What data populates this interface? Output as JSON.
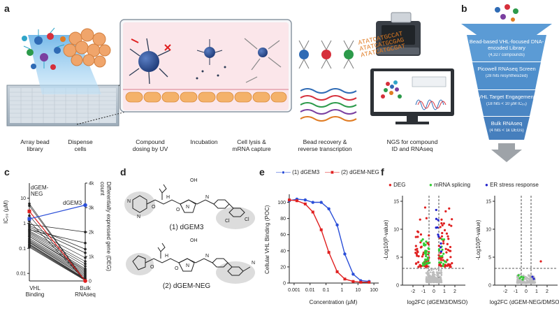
{
  "panel_letters": {
    "a": "a",
    "b": "b",
    "c": "c",
    "d": "d",
    "e": "e",
    "f": "f"
  },
  "panel_a": {
    "steps": [
      {
        "label": "Array bead\nlibrary"
      },
      {
        "label": "Dispense\ncells"
      },
      {
        "label": "Compound\ndosing by UV"
      },
      {
        "label": "Incubation"
      },
      {
        "label": "Cell lysis &\nmRNA capture"
      },
      {
        "label": "Bead recovery &\nreverse transcription"
      },
      {
        "label": "NGS for compound\nID and RNAseq"
      }
    ],
    "sequences": [
      "ATATCATGCCAT",
      "ATATCATGCGAG",
      "ATATCATGCGAT"
    ]
  },
  "panel_b": {
    "tiers": [
      {
        "title": "Bead-based VHL-focused DNA-encoded Library",
        "sub": "(4,327 compounds)",
        "color": "#5b9bd5"
      },
      {
        "title": "Picowell RNAseq Screen",
        "sub": "(28 hits resynthesized)",
        "color": "#4f8fcc"
      },
      {
        "title": "VHL Target Engagement",
        "sub": "(18 hits < 10 µM IC₅₀)",
        "color": "#4a86c4"
      },
      {
        "title": "Bulk RNAseq",
        "sub": "(4 hits < 1k DEGs)",
        "color": "#467fbd"
      }
    ]
  },
  "panel_c": {
    "left_axis_label": "IC₅₀ (µM)",
    "right_axis_label": "Differentially expressed gene (DEG) count",
    "left_ticks": [
      "0.01",
      "0.1",
      "1",
      "10"
    ],
    "right_ticks": [
      "0",
      "1k",
      "2k",
      "3k",
      "4k"
    ],
    "x_labels": [
      "VHL\nBinding",
      "Bulk\nRNAseq"
    ],
    "annot_neg": "dGEM-\nNEG",
    "annot_dgem3": "dGEM3"
  },
  "panel_d": {
    "compound1": "(1) dGEM3",
    "compound2": "(2) dGEM-NEG",
    "atoms": [
      "OH",
      "OH",
      "O",
      "O",
      "O",
      "O",
      "H",
      "H",
      "N",
      "N",
      "N",
      "N",
      "N",
      "N",
      "Cl",
      "Cl",
      "N"
    ]
  },
  "panel_e": {
    "legend": [
      {
        "name": "(1) dGEM3",
        "color": "#2b4fd8"
      },
      {
        "name": "(2) dGEM-NEG",
        "color": "#e02020"
      }
    ],
    "ylabel": "Cellular VHL Binding (POC)",
    "xlabel": "Concentration (µM)"
  },
  "panel_f": {
    "legend": [
      {
        "name": "DEG",
        "color": "#e02020"
      },
      {
        "name": "mRNA splicing",
        "color": "#33cc33"
      },
      {
        "name": "ER stress response",
        "color": "#2222cc"
      }
    ],
    "ylabel": "-Log10(P-value)",
    "xlabel_left": "log2FC (dGEM3/DMSO)",
    "xlabel_right": "log2FC (dGEM-NEG/DMSO)"
  },
  "chart_data": [
    {
      "type": "line",
      "panel": "c",
      "ylim": [
        0.005,
        40
      ],
      "y2lim": [
        0,
        4000
      ],
      "series": [
        {
          "name": "dGEM-NEG",
          "values": [
            3.0,
            0
          ]
        },
        {
          "name": "dGEM3",
          "values": [
            1.5,
            3100
          ]
        }
      ],
      "other_compound_ic50": [
        0.9,
        0.55,
        0.8,
        0.7,
        0.6,
        0.5,
        0.45,
        0.4,
        0.35,
        0.3,
        0.3,
        0.25,
        0.22,
        0.2,
        0.18,
        0.17,
        0.15,
        0.14,
        0.13,
        0.12,
        0.11,
        1.2,
        2.0,
        5.0,
        6.0
      ],
      "other_compound_deg": [
        2000,
        1550,
        1300,
        1150,
        950,
        800,
        700,
        600,
        500,
        450,
        400,
        350,
        300,
        250,
        200,
        150,
        100,
        80,
        60,
        40,
        20,
        10,
        5,
        0,
        0
      ]
    },
    {
      "type": "line",
      "panel": "e",
      "xlabel": "Concentration (µM)",
      "ylabel": "Cellular VHL Binding (POC)",
      "xlim": [
        0.0005,
        200
      ],
      "ylim": [
        0,
        110
      ],
      "x_ticks": [
        "0.001",
        "0.01",
        "0.1",
        "1",
        "10",
        "100"
      ],
      "y_ticks": [
        0,
        20,
        40,
        60,
        80,
        100
      ],
      "series": [
        {
          "name": "(1) dGEM3",
          "x": [
            0.0005,
            0.0015,
            0.005,
            0.015,
            0.05,
            0.15,
            0.5,
            1.5,
            5,
            15,
            50
          ],
          "y": [
            102,
            104,
            103,
            100,
            100,
            92,
            72,
            36,
            11,
            3,
            2
          ]
        },
        {
          "name": "(2) dGEM-NEG",
          "x": [
            0.0005,
            0.0015,
            0.005,
            0.015,
            0.05,
            0.15,
            0.5,
            1.5,
            5,
            15,
            50
          ],
          "y": [
            103,
            102,
            98,
            88,
            66,
            38,
            14,
            5,
            2,
            1,
            1
          ]
        }
      ]
    },
    {
      "type": "scatter",
      "panel": "f-left",
      "xlabel": "log2FC (dGEM3/DMSO)",
      "ylabel": "-Log10(P-value)",
      "xlim": [
        -3,
        3
      ],
      "ylim": [
        0,
        16
      ],
      "x_ticks": [
        -2,
        -1,
        0,
        1,
        2
      ],
      "y_ticks": [
        0,
        5,
        10,
        15
      ]
    },
    {
      "type": "scatter",
      "panel": "f-right",
      "xlabel": "log2FC (dGEM-NEG/DMSO)",
      "ylabel": "-Log10(P-value)",
      "xlim": [
        -3,
        3
      ],
      "ylim": [
        0,
        16
      ],
      "x_ticks": [
        -2,
        -1,
        0,
        1,
        2
      ],
      "y_ticks": [
        0,
        5,
        10,
        15
      ]
    }
  ]
}
